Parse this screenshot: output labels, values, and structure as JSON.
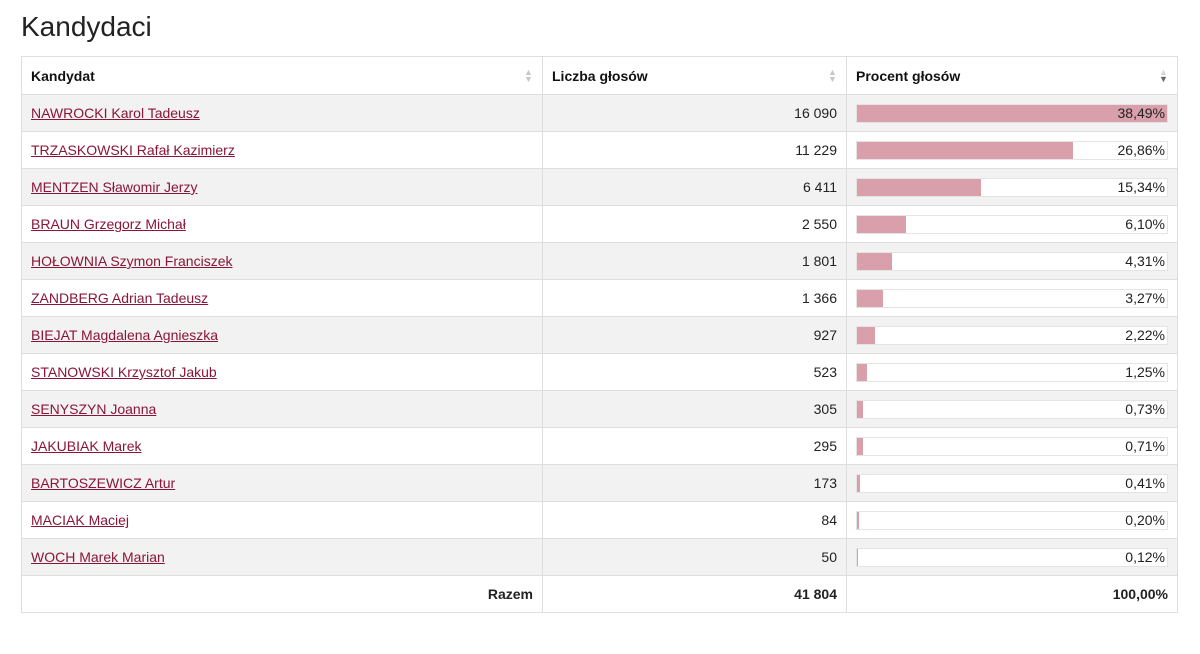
{
  "page": {
    "title": "Kandydaci"
  },
  "table": {
    "columns": [
      {
        "label": "Kandydat",
        "sort": "none"
      },
      {
        "label": "Liczba głosów",
        "sort": "none"
      },
      {
        "label": "Procent głosów",
        "sort": "descending"
      }
    ],
    "rows": [
      {
        "name": "NAWROCKI Karol Tadeusz",
        "votes": "16 090",
        "percent": "38,49%",
        "share": 38.49
      },
      {
        "name": "TRZASKOWSKI Rafał Kazimierz",
        "votes": "11 229",
        "percent": "26,86%",
        "share": 26.86
      },
      {
        "name": "MENTZEN Sławomir Jerzy",
        "votes": "6 411",
        "percent": "15,34%",
        "share": 15.34
      },
      {
        "name": "BRAUN Grzegorz Michał",
        "votes": "2 550",
        "percent": "6,10%",
        "share": 6.1
      },
      {
        "name": "HOŁOWNIA Szymon Franciszek",
        "votes": "1 801",
        "percent": "4,31%",
        "share": 4.31
      },
      {
        "name": "ZANDBERG Adrian Tadeusz",
        "votes": "1 366",
        "percent": "3,27%",
        "share": 3.27
      },
      {
        "name": "BIEJAT Magdalena Agnieszka",
        "votes": "927",
        "percent": "2,22%",
        "share": 2.22
      },
      {
        "name": "STANOWSKI Krzysztof Jakub",
        "votes": "523",
        "percent": "1,25%",
        "share": 1.25
      },
      {
        "name": "SENYSZYN Joanna",
        "votes": "305",
        "percent": "0,73%",
        "share": 0.73
      },
      {
        "name": "JAKUBIAK Marek",
        "votes": "295",
        "percent": "0,71%",
        "share": 0.71
      },
      {
        "name": "BARTOSZEWICZ Artur",
        "votes": "173",
        "percent": "0,41%",
        "share": 0.41
      },
      {
        "name": "MACIAK Maciej",
        "votes": "84",
        "percent": "0,20%",
        "share": 0.2
      },
      {
        "name": "WOCH Marek Marian",
        "votes": "50",
        "percent": "0,12%",
        "share": 0.12
      }
    ],
    "total": {
      "label": "Razem",
      "votes": "41 804",
      "percent": "100,00%"
    }
  },
  "colors": {
    "bar_fill": "#d9a0ab",
    "link": "#8a1538"
  },
  "bar_scale_max": 38.49
}
